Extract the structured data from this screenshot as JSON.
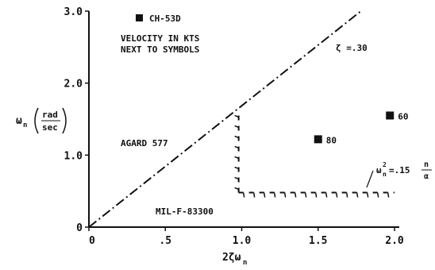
{
  "chart_data": {
    "type": "scatter",
    "xlabel": "2ζω",
    "xlabel_sub": "n",
    "ylabel": "ω",
    "ylabel_sub": "n",
    "ylabel_unit_num": "rad",
    "ylabel_unit_den": "sec",
    "xlim": [
      0,
      2.0
    ],
    "ylim": [
      0,
      3.0
    ],
    "x_ticks": [
      {
        "value": 0,
        "label": "0"
      },
      {
        "value": 0.5,
        "label": ".5"
      },
      {
        "value": 1.0,
        "label": "1.0"
      },
      {
        "value": 1.5,
        "label": "1.5"
      },
      {
        "value": 2.0,
        "label": "2.0"
      }
    ],
    "y_ticks": [
      {
        "value": 0,
        "label": "0"
      },
      {
        "value": 1.0,
        "label": "1.0"
      },
      {
        "value": 2.0,
        "label": "2.0"
      },
      {
        "value": 3.0,
        "label": "3.0"
      }
    ],
    "legend": {
      "marker_label": "CH-53D",
      "position": "top-left"
    },
    "note_lines": [
      "VELOCITY IN KTS",
      "NEXT TO SYMBOLS"
    ],
    "points": [
      {
        "x": 1.5,
        "y": 1.22,
        "label": "80"
      },
      {
        "x": 1.97,
        "y": 1.55,
        "label": "60"
      }
    ],
    "boundaries": [
      {
        "name": "ζ = .30 line",
        "style": "dash-dot",
        "x": [
          0,
          1.78
        ],
        "y": [
          0,
          3.0
        ]
      },
      {
        "name": "AGARD 577 / MIL-F-83300 vertical",
        "style": "dashed",
        "x": [
          0.98,
          0.98
        ],
        "y": [
          0.48,
          1.58
        ]
      },
      {
        "name": "ω²n = .15 n/α",
        "style": "dashed",
        "x": [
          0.98,
          2.0
        ],
        "y": [
          0.48,
          0.48
        ]
      }
    ],
    "annotations": {
      "zeta": "ζ =.30",
      "agard": "AGARD 577",
      "milf": "MIL-F-83300",
      "omega_main": "ω",
      "omega_sub": "n",
      "omega_sup": "2",
      "omega_rest": "=.15",
      "frac_num": "n",
      "frac_den": "α"
    }
  }
}
